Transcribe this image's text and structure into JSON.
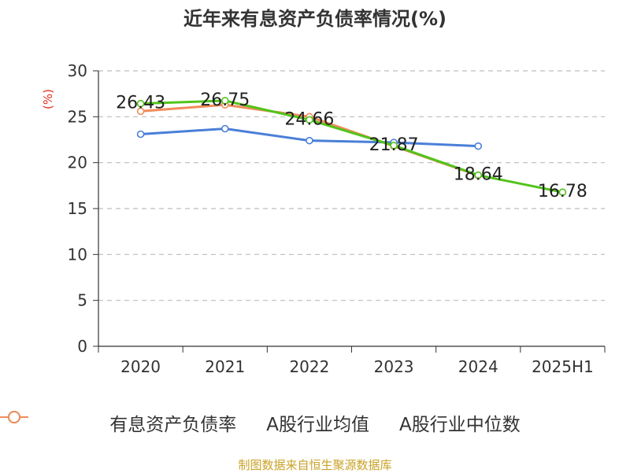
{
  "title": "近年来有息资产负债率情况(%)",
  "source": "制图数据来自恒生聚源数据库",
  "chart_data": {
    "type": "line",
    "title": "近年来有息资产负债率情况(%)",
    "xlabel": "",
    "ylabel": "(%)",
    "categories": [
      "2020",
      "2021",
      "2022",
      "2023",
      "2024",
      "2025H1"
    ],
    "ylim": [
      0,
      30
    ],
    "yticks": [
      0,
      5,
      10,
      15,
      20,
      25,
      30
    ],
    "grid": true,
    "legend_position": "bottom",
    "series": [
      {
        "name": "有息资产负债率",
        "color": "#52c41a",
        "values": [
          26.43,
          26.75,
          24.66,
          21.87,
          18.64,
          16.78
        ],
        "labels": [
          "26.43",
          "26.75",
          "24.66",
          "21.87",
          "18.64",
          "16.78"
        ]
      },
      {
        "name": "A股行业均值",
        "color": "#4a7fd8",
        "values": [
          23.1,
          23.7,
          22.4,
          22.2,
          21.8,
          null
        ]
      },
      {
        "name": "A股行业中位数",
        "color": "#f08c5a",
        "values": [
          25.6,
          26.3,
          25.0,
          21.8,
          18.6,
          null
        ]
      }
    ]
  }
}
